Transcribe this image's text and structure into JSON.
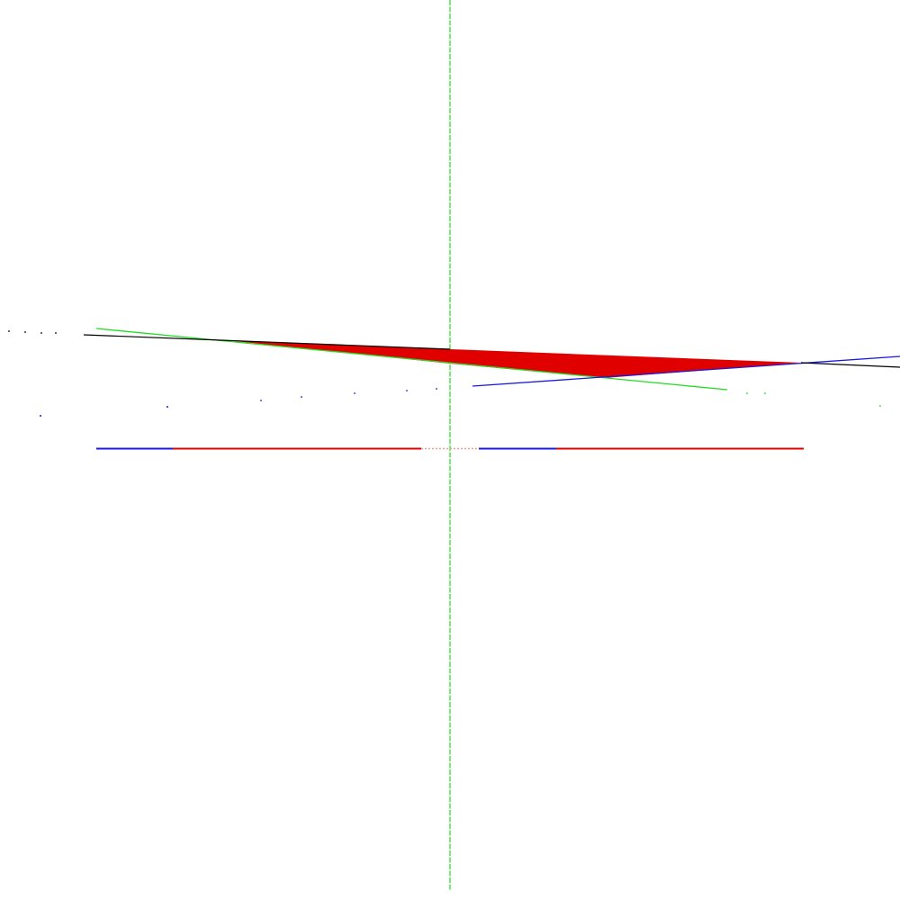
{
  "scene": {
    "background": "#ffffff",
    "colors": {
      "red": "#e00000",
      "green": "#22dd22",
      "blue": "#1a1adf",
      "black": "#000000"
    },
    "elements": [
      "vertical-green-axis",
      "horizontal-blue-red-axis",
      "red-filled-wedge",
      "green-edge-line",
      "blue-edge-line",
      "black-edge-line",
      "scattered-point-dots"
    ]
  }
}
